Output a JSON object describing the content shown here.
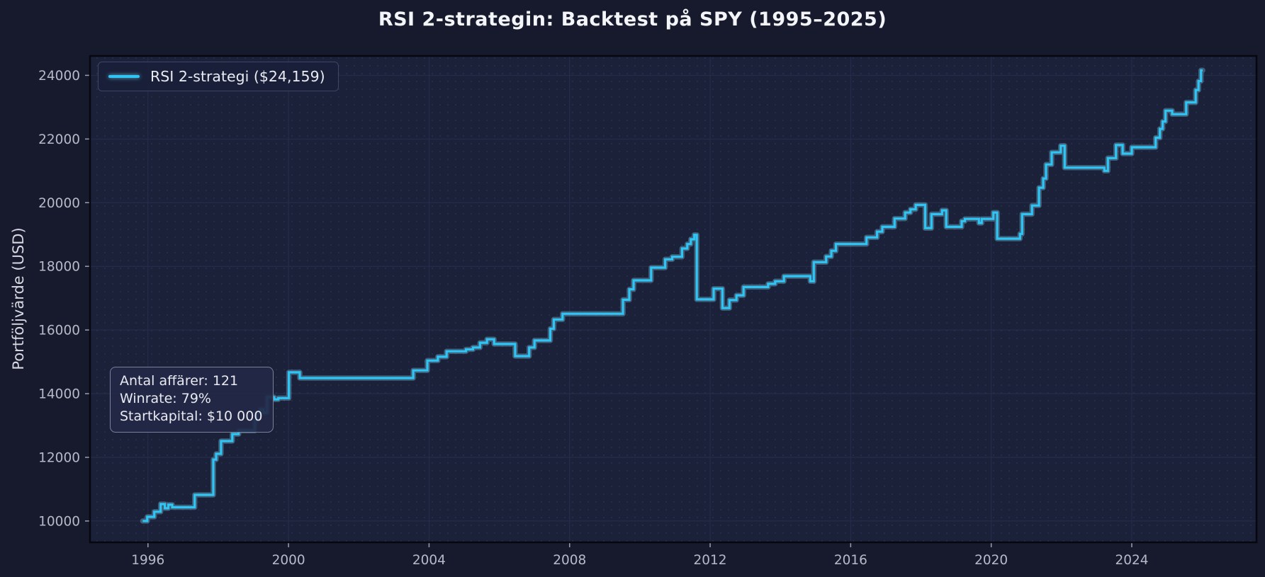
{
  "title": "RSI 2-strategin: Backtest på SPY (1995–2025)",
  "legend": {
    "label": "RSI 2-strategi ($24,159)"
  },
  "annotation": {
    "lines": [
      "Antal affärer: 121",
      "Winrate: 79%",
      "Startkapital: $10 000"
    ]
  },
  "colors": {
    "figure_bg": "#171a2c",
    "axes_bg": "#1a2139",
    "grid": "#272e4e",
    "dot": "#303a60",
    "spine": "#07080f",
    "tick_mark": "#9aa0b4",
    "tick_text": "#b6bac8",
    "line": "#2ec5f5",
    "line_glow": "#8fdefa",
    "title_text": "#f4f5f9",
    "axis_label_text": "#d6d8e2"
  },
  "chart_data": {
    "type": "line",
    "step": "after",
    "title": "RSI 2-strategin: Backtest på SPY (1995–2025)",
    "xlabel": "",
    "ylabel": "Portföljvärde (USD)",
    "legend_position": "upper left",
    "grid": true,
    "x_ticks": [
      1996,
      2000,
      2004,
      2008,
      2012,
      2016,
      2020,
      2024
    ],
    "y_ticks": [
      10000,
      12000,
      14000,
      16000,
      18000,
      20000,
      22000,
      24000
    ],
    "xlim": [
      1994.35,
      2027.55
    ],
    "ylim": [
      9330,
      24610
    ],
    "final_value": 24159,
    "start_value": 10000,
    "series": [
      {
        "name": "RSI 2-strategi ($24,159)",
        "points": [
          [
            1995.85,
            10000
          ],
          [
            1995.98,
            10130
          ],
          [
            1996.18,
            10290
          ],
          [
            1996.36,
            10530
          ],
          [
            1996.48,
            10400
          ],
          [
            1996.58,
            10510
          ],
          [
            1996.69,
            10430
          ],
          [
            1997.33,
            10820
          ],
          [
            1997.86,
            11930
          ],
          [
            1997.94,
            12110
          ],
          [
            1998.08,
            12510
          ],
          [
            1998.4,
            12730
          ],
          [
            1998.58,
            12840
          ],
          [
            1999.04,
            13160
          ],
          [
            1999.1,
            13400
          ],
          [
            1999.19,
            13510
          ],
          [
            1999.29,
            13400
          ],
          [
            1999.39,
            13890
          ],
          [
            1999.59,
            13820
          ],
          [
            1999.71,
            13860
          ],
          [
            2000.01,
            14670
          ],
          [
            2000.32,
            14490
          ],
          [
            2003.55,
            14730
          ],
          [
            2003.95,
            15040
          ],
          [
            2004.25,
            15160
          ],
          [
            2004.5,
            15330
          ],
          [
            2005.05,
            15390
          ],
          [
            2005.25,
            15450
          ],
          [
            2005.45,
            15600
          ],
          [
            2005.65,
            15710
          ],
          [
            2005.85,
            15560
          ],
          [
            2006.45,
            15180
          ],
          [
            2006.85,
            15450
          ],
          [
            2007.0,
            15670
          ],
          [
            2007.45,
            16040
          ],
          [
            2007.55,
            16330
          ],
          [
            2007.8,
            16510
          ],
          [
            2009.52,
            16950
          ],
          [
            2009.7,
            17280
          ],
          [
            2009.82,
            17560
          ],
          [
            2010.32,
            17960
          ],
          [
            2010.72,
            18220
          ],
          [
            2010.92,
            18300
          ],
          [
            2011.2,
            18560
          ],
          [
            2011.35,
            18700
          ],
          [
            2011.45,
            18850
          ],
          [
            2011.55,
            18990
          ],
          [
            2011.62,
            16960
          ],
          [
            2012.1,
            17300
          ],
          [
            2012.35,
            16690
          ],
          [
            2012.55,
            16940
          ],
          [
            2012.75,
            17090
          ],
          [
            2012.95,
            17350
          ],
          [
            2013.65,
            17450
          ],
          [
            2013.85,
            17530
          ],
          [
            2014.1,
            17690
          ],
          [
            2014.85,
            17530
          ],
          [
            2014.95,
            18130
          ],
          [
            2015.3,
            18310
          ],
          [
            2015.45,
            18490
          ],
          [
            2015.58,
            18700
          ],
          [
            2016.45,
            18910
          ],
          [
            2016.75,
            19090
          ],
          [
            2016.9,
            19240
          ],
          [
            2017.25,
            19500
          ],
          [
            2017.55,
            19690
          ],
          [
            2017.7,
            19790
          ],
          [
            2017.85,
            19930
          ],
          [
            2018.12,
            19200
          ],
          [
            2018.3,
            19640
          ],
          [
            2018.6,
            19760
          ],
          [
            2018.72,
            19240
          ],
          [
            2019.16,
            19420
          ],
          [
            2019.25,
            19490
          ],
          [
            2019.65,
            19360
          ],
          [
            2019.73,
            19490
          ],
          [
            2020.06,
            19690
          ],
          [
            2020.17,
            18870
          ],
          [
            2020.82,
            19020
          ],
          [
            2020.88,
            19640
          ],
          [
            2021.16,
            19910
          ],
          [
            2021.36,
            20470
          ],
          [
            2021.48,
            20760
          ],
          [
            2021.56,
            21200
          ],
          [
            2021.72,
            21580
          ],
          [
            2021.98,
            21790
          ],
          [
            2022.09,
            21100
          ],
          [
            2023.22,
            21000
          ],
          [
            2023.32,
            21400
          ],
          [
            2023.55,
            21810
          ],
          [
            2023.74,
            21540
          ],
          [
            2024.0,
            21740
          ],
          [
            2024.68,
            22040
          ],
          [
            2024.8,
            22320
          ],
          [
            2024.88,
            22550
          ],
          [
            2024.96,
            22890
          ],
          [
            2025.15,
            22780
          ],
          [
            2025.55,
            23150
          ],
          [
            2025.82,
            23540
          ],
          [
            2025.9,
            23820
          ],
          [
            2025.97,
            24159
          ],
          [
            2026.02,
            24159
          ]
        ]
      }
    ]
  }
}
